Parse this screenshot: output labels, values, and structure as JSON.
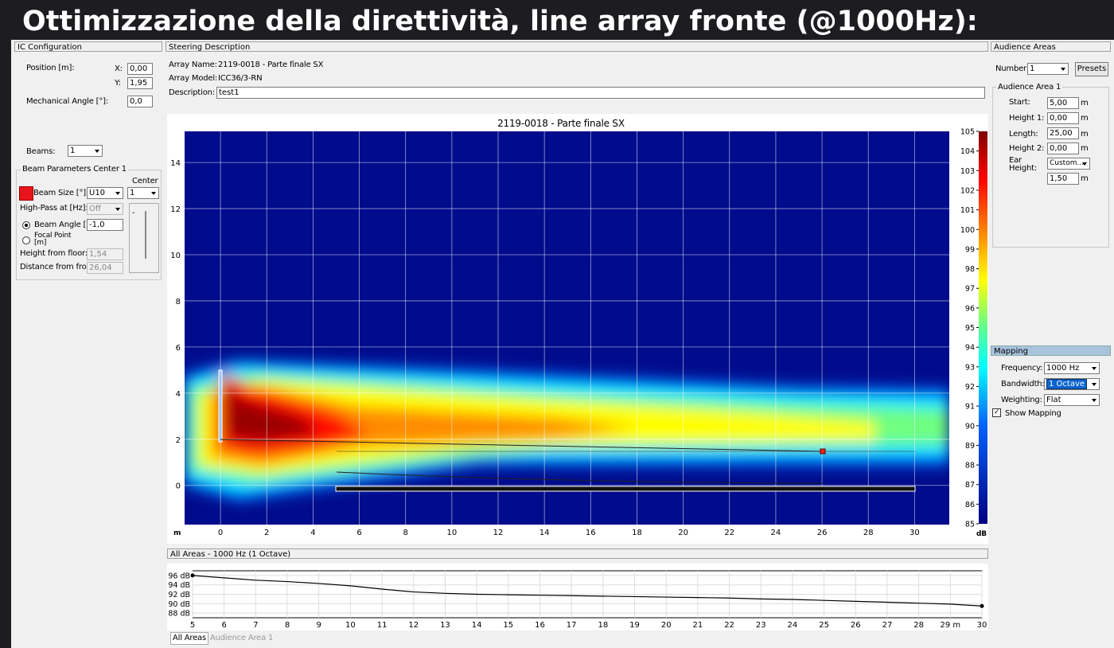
{
  "title": "Ottimizzazione della direttività, line array fronte (@1000Hz):",
  "ic_config": {
    "header": "IC Configuration",
    "position_label": "Position [m]:",
    "x_label": "X:",
    "x_value": "0,00",
    "y_label": "Y:",
    "y_value": "1,95",
    "mech_label": "Mechanical Angle [°]:",
    "mech_value": "0,0",
    "beams_label": "Beams:",
    "beams_value": "1",
    "group_title": "Beam Parameters Center 1",
    "center_label": "Center",
    "beam_size_label": "Beam Size [°]:",
    "beam_size_value": "U10",
    "center_value": "1",
    "highpass_label": "High-Pass at [Hz]:",
    "highpass_value": "Off",
    "beam_angle_label": "Beam Angle [°]:",
    "beam_angle_value": "-1,0",
    "focal_label": "Focal Point [m]",
    "height_label": "Height from floor:",
    "height_value": "1,54",
    "distance_label": "Distance from front:",
    "distance_value": "26,04",
    "slider_label": "-"
  },
  "steering": {
    "header": "Steering Description",
    "array_name_label": "Array Name:",
    "array_name": "2119-0018 - Parte finale SX",
    "array_model_label": "Array Model:",
    "array_model": "ICC36/3-RN",
    "description_label": "Description:",
    "description": "test1"
  },
  "heatmap": {
    "title": "2119-0018 - Parte finale SX",
    "x_unit": "m",
    "color_unit": "dB",
    "xlim": [
      -1.55,
      31.5
    ],
    "xticks": [
      0,
      2,
      4,
      6,
      8,
      10,
      12,
      14,
      16,
      18,
      20,
      22,
      24,
      26,
      28,
      30
    ],
    "ylim": [
      -1.7,
      15.35
    ],
    "yticks": [
      0,
      2,
      4,
      6,
      8,
      10,
      12,
      14
    ],
    "clim": [
      85,
      105
    ],
    "cticks": [
      85,
      86,
      87,
      88,
      89,
      90,
      91,
      92,
      93,
      94,
      95,
      96,
      97,
      98,
      99,
      100,
      101,
      102,
      103,
      104,
      105
    ],
    "grid": true
  },
  "spl_chart": {
    "header": "All Areas - 1000 Hz (1 Octave)",
    "type": "line",
    "xlim": [
      5,
      30
    ],
    "xticks": [
      5,
      6,
      7,
      8,
      9,
      10,
      11,
      12,
      13,
      14,
      15,
      16,
      17,
      18,
      19,
      20,
      21,
      22,
      23,
      24,
      25,
      26,
      27,
      28,
      {
        "value": 29,
        "label": "29 m"
      },
      30
    ],
    "ylim": [
      87,
      97
    ],
    "yticks": [
      {
        "value": 88,
        "label": "88 dB"
      },
      {
        "value": 90,
        "label": "90 dB"
      },
      {
        "value": 92,
        "label": "92 dB"
      },
      {
        "value": 94,
        "label": "94 dB"
      },
      {
        "value": 96,
        "label": "96 dB"
      }
    ],
    "grid": true,
    "series": [
      {
        "color": "#000000",
        "x": [
          5,
          6,
          7,
          8,
          9,
          10,
          11,
          12,
          13,
          14,
          15,
          16,
          17,
          18,
          19,
          20,
          21,
          22,
          23,
          24,
          25,
          26,
          27,
          28,
          29,
          30
        ],
        "values": [
          96,
          95.5,
          95,
          94.7,
          94.3,
          93.8,
          93.1,
          92.5,
          92.2,
          92,
          91.9,
          91.8,
          91.7,
          91.6,
          91.5,
          91.4,
          91.3,
          91.2,
          91,
          90.9,
          90.7,
          90.5,
          90.3,
          90.1,
          89.9,
          89.5
        ]
      }
    ],
    "tabs": [
      "All Areas",
      "Audience Area 1"
    ]
  },
  "audience": {
    "header": "Audience Areas",
    "number_label": "Number:",
    "number_value": "1",
    "presets": "Presets",
    "group_title": "Audience Area 1",
    "start_label": "Start:",
    "start_value": "5,00",
    "height1_label": "Height 1:",
    "height1_value": "0,00",
    "length_label": "Length:",
    "length_value": "25,00",
    "height2_label": "Height 2:",
    "height2_value": "0,00",
    "ear_label": "Ear Height:",
    "ear_mode": "Custom...",
    "ear_value": "1,50",
    "unit": "m"
  },
  "mapping": {
    "header": "Mapping",
    "frequency_label": "Frequency:",
    "frequency_value": "1000 Hz",
    "bandwidth_label": "Bandwidth:",
    "bandwidth_value": "1 Octave",
    "weighting_label": "Weighting:",
    "weighting_value": "Flat",
    "show_label": "Show Mapping"
  }
}
